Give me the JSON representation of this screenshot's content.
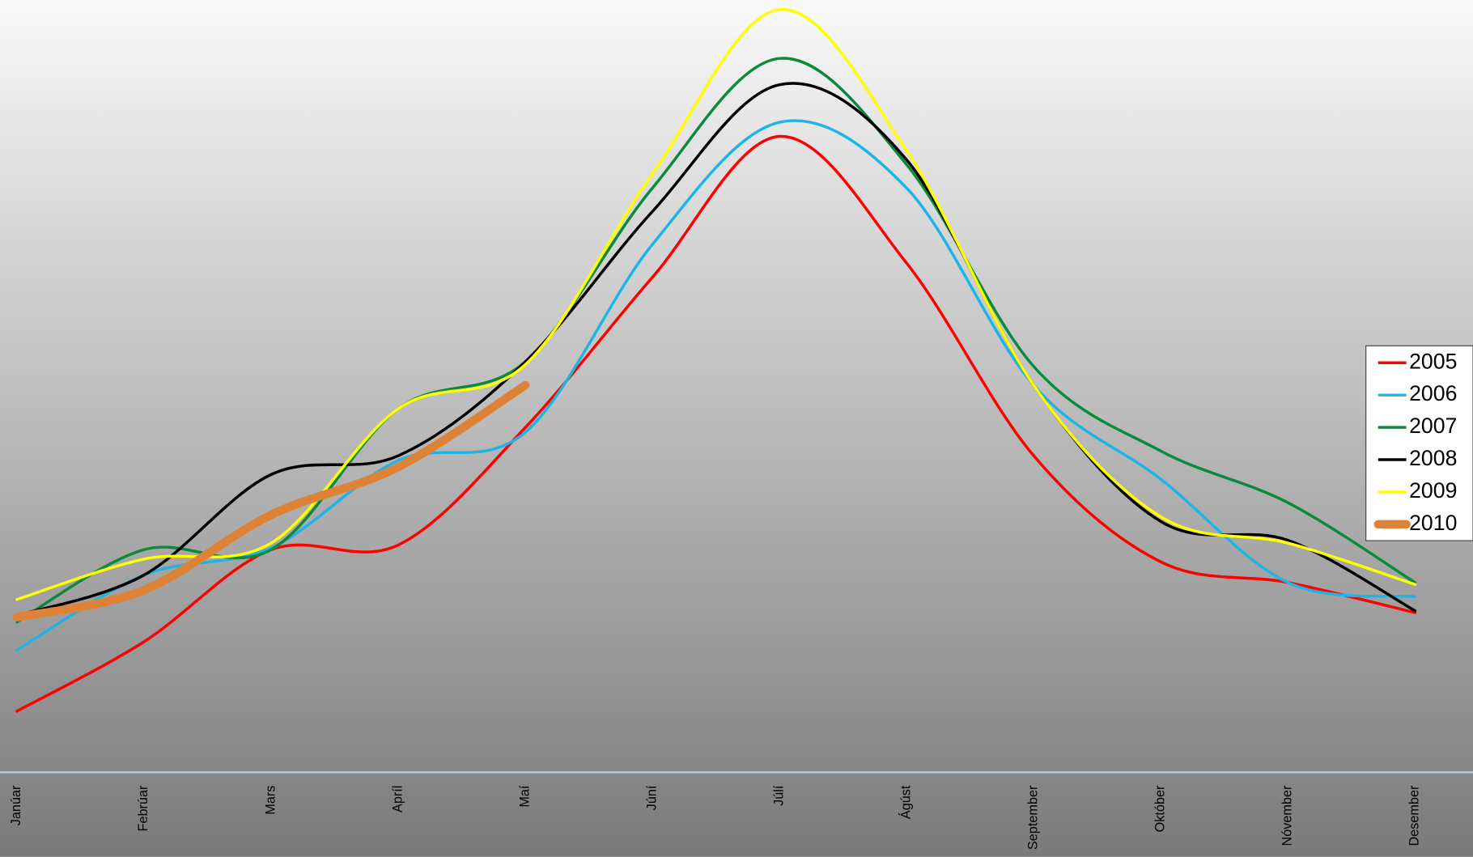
{
  "chart_data": {
    "type": "line",
    "categories": [
      "Janúar",
      "Febrúar",
      "Mars",
      "Apríl",
      "Maí",
      "Júní",
      "Júlí",
      "Ágúst",
      "September",
      "Október",
      "Nóvember",
      "Desember"
    ],
    "ylim": [
      0,
      822
    ],
    "legend": "right",
    "series": [
      {
        "name": "2005",
        "color": "#ff0000",
        "values": [
          65,
          139,
          237,
          242,
          367,
          527,
          677,
          542,
          337,
          224,
          202,
          170
        ]
      },
      {
        "name": "2006",
        "color": "#1fb4e6",
        "values": [
          130,
          210,
          239,
          332,
          362,
          562,
          692,
          622,
          412,
          312,
          202,
          187
        ]
      },
      {
        "name": "2007",
        "color": "#0a8a3a",
        "values": [
          160,
          237,
          237,
          387,
          437,
          622,
          760,
          647,
          432,
          342,
          287,
          202
        ]
      },
      {
        "name": "2008",
        "color": "#000000",
        "values": [
          167,
          210,
          317,
          337,
          437,
          597,
          732,
          652,
          412,
          267,
          247,
          172
        ]
      },
      {
        "name": "2009",
        "color": "#ffff00",
        "values": [
          184,
          227,
          244,
          387,
          434,
          637,
          812,
          662,
          412,
          272,
          244,
          200
        ]
      },
      {
        "name": "2010",
        "color": "#de8238",
        "values": [
          165,
          194,
          274,
          325,
          412,
          null,
          null,
          null,
          null,
          null,
          null,
          null
        ]
      }
    ]
  }
}
